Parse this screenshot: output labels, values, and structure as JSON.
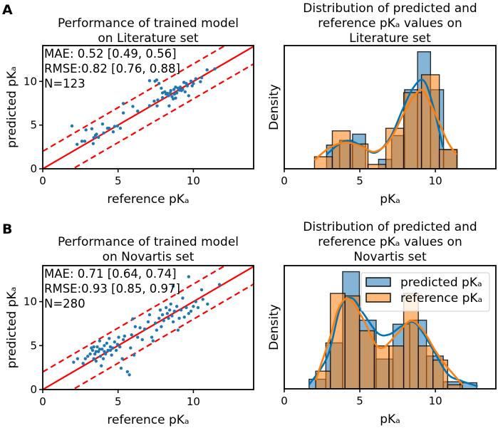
{
  "colors": {
    "blue": "#1f77b4",
    "kde_blue": "#0173b2",
    "orange": "#ff7f0e",
    "line_red": "#ff0000"
  },
  "chart_data": [
    {
      "panel": "A",
      "type": "scatter",
      "title": [
        "Performance of trained model",
        "on Literature set"
      ],
      "xlabel": "reference pKₐ",
      "ylabel": "predicted pKₐ",
      "xlim": [
        0,
        14
      ],
      "ylim": [
        0,
        14.1
      ],
      "xticks": [
        0,
        5,
        10
      ],
      "yticks": [
        0,
        5,
        10
      ],
      "stats": [
        "MAE:  0.52 [0.49, 0.56]",
        "RMSE:0.82 [0.76, 0.88]",
        "N=123"
      ],
      "reference_lines": [
        {
          "offset": 0,
          "style": "solid"
        },
        {
          "offset": 2,
          "style": "dashed"
        },
        {
          "offset": -2,
          "style": "dashed"
        }
      ],
      "points": [
        [
          1.94,
          4.9
        ],
        [
          2.28,
          2.8
        ],
        [
          2.6,
          3.15
        ],
        [
          2.79,
          3.15
        ],
        [
          2.87,
          4.45
        ],
        [
          3.26,
          4.58
        ],
        [
          3.35,
          2.88
        ],
        [
          3.39,
          3.56
        ],
        [
          3.5,
          3.83
        ],
        [
          3.57,
          3.96
        ],
        [
          3.7,
          3.6
        ],
        [
          3.97,
          5.12
        ],
        [
          4.05,
          4.1
        ],
        [
          4.3,
          4.64
        ],
        [
          4.41,
          4.64
        ],
        [
          4.68,
          4.23
        ],
        [
          4.77,
          4.85
        ],
        [
          4.96,
          4.9
        ],
        [
          5.15,
          4.64
        ],
        [
          5.35,
          6.39
        ],
        [
          5.35,
          7.47
        ],
        [
          5.98,
          7.14
        ],
        [
          6.3,
          6.6
        ],
        [
          7.09,
          10.08
        ],
        [
          7.09,
          7.22
        ],
        [
          7.4,
          7.74
        ],
        [
          7.45,
          10.03
        ],
        [
          7.56,
          10.16
        ],
        [
          7.59,
          7.2
        ],
        [
          7.72,
          9.76
        ],
        [
          7.87,
          9.22
        ],
        [
          7.95,
          8.14
        ],
        [
          8.1,
          8.81
        ],
        [
          8.27,
          8.63
        ],
        [
          8.35,
          8.36
        ],
        [
          8.39,
          7.2
        ],
        [
          8.46,
          8.68
        ],
        [
          8.58,
          8.27
        ],
        [
          8.71,
          9.08
        ],
        [
          8.82,
          8.09
        ],
        [
          8.9,
          8.68
        ],
        [
          9.06,
          9.0
        ],
        [
          9.21,
          8.95
        ],
        [
          9.37,
          9.89
        ],
        [
          9.45,
          8.81
        ],
        [
          9.6,
          9.49
        ],
        [
          9.69,
          8.36
        ],
        [
          9.84,
          10.03
        ],
        [
          10.0,
          9.76
        ],
        [
          10.16,
          10.3
        ],
        [
          10.47,
          9.97
        ],
        [
          10.55,
          10.43
        ],
        [
          10.91,
          11.32
        ],
        [
          11.42,
          11.43
        ],
        [
          8.19,
          8.54
        ],
        [
          8.5,
          8.95
        ],
        [
          8.74,
          8.54
        ],
        [
          8.98,
          9.22
        ],
        [
          9.29,
          9.08
        ],
        [
          9.53,
          9.76
        ],
        [
          9.92,
          9.49
        ],
        [
          8.82,
          9.35
        ],
        [
          8.66,
          8.0
        ],
        [
          9.13,
          9.35
        ],
        [
          7.95,
          8.68
        ],
        [
          7.64,
          7.87
        ]
      ]
    },
    {
      "panel": "A",
      "type": "histogram",
      "title": [
        "Distribution of predicted and",
        "reference pKₐ values on",
        "Literature set"
      ],
      "xlabel": "pKₐ",
      "ylabel": "Density",
      "xlim": [
        0,
        14
      ],
      "ylim": [
        0,
        0.338
      ],
      "xticks": [
        0,
        5,
        10
      ],
      "legend": null,
      "series": [
        {
          "name": "predicted pKₐ",
          "color": "blue",
          "bin_start": 2.8,
          "bin_width": 0.86,
          "density": [
            0.065,
            0.078,
            0.095,
            0.0,
            0.026,
            0.091,
            0.217,
            0.321,
            0.217,
            0.052
          ],
          "kde": [
            [
              2.8,
              0.039
            ],
            [
              3.5,
              0.064
            ],
            [
              4.2,
              0.077
            ],
            [
              5.0,
              0.066
            ],
            [
              6.0,
              0.044
            ],
            [
              7.0,
              0.085
            ],
            [
              7.8,
              0.16
            ],
            [
              8.5,
              0.22
            ],
            [
              9.2,
              0.243
            ],
            [
              9.8,
              0.18
            ],
            [
              10.5,
              0.059
            ]
          ]
        },
        {
          "name": "reference pKₐ",
          "color": "orange",
          "bin_start": 2.0,
          "bin_width": 1.18,
          "density": [
            0.033,
            0.104,
            0.068,
            0.012,
            0.111,
            0.209,
            0.258,
            0.053
          ],
          "kde": [
            [
              2.0,
              0.024
            ],
            [
              3.0,
              0.058
            ],
            [
              4.0,
              0.072
            ],
            [
              5.0,
              0.063
            ],
            [
              6.0,
              0.047
            ],
            [
              7.0,
              0.08
            ],
            [
              8.0,
              0.16
            ],
            [
              8.7,
              0.205
            ],
            [
              9.2,
              0.213
            ],
            [
              10.0,
              0.15
            ],
            [
              10.8,
              0.075
            ],
            [
              11.4,
              0.039
            ]
          ]
        }
      ]
    },
    {
      "panel": "B",
      "type": "scatter",
      "title": [
        "Performance of trained model",
        "on Novartis set"
      ],
      "xlabel": "reference pKₐ",
      "ylabel": "predicted pKₐ",
      "xlim": [
        0,
        14
      ],
      "ylim": [
        0,
        14.1
      ],
      "xticks": [
        0,
        5,
        10
      ],
      "yticks": [
        0,
        5,
        10
      ],
      "stats": [
        "MAE:  0.71 [0.64, 0.74]",
        "RMSE:0.93 [0.85, 0.97]",
        "N=280"
      ],
      "reference_lines": [
        {
          "offset": 0,
          "style": "solid"
        },
        {
          "offset": 2,
          "style": "dashed"
        },
        {
          "offset": -2,
          "style": "dashed"
        }
      ],
      "points": [
        [
          2.05,
          3.11
        ],
        [
          2.31,
          3.51
        ],
        [
          2.68,
          2.97
        ],
        [
          2.83,
          3.51
        ],
        [
          2.99,
          3.78
        ],
        [
          3.15,
          4.05
        ],
        [
          3.23,
          4.73
        ],
        [
          3.31,
          4.46
        ],
        [
          3.39,
          3.51
        ],
        [
          3.46,
          4.05
        ],
        [
          3.54,
          3.24
        ],
        [
          3.62,
          4.86
        ],
        [
          3.7,
          4.32
        ],
        [
          3.78,
          5.54
        ],
        [
          3.83,
          3.78
        ],
        [
          3.89,
          2.7
        ],
        [
          3.94,
          4.59
        ],
        [
          4.02,
          3.51
        ],
        [
          4.09,
          5.0
        ],
        [
          4.17,
          4.05
        ],
        [
          4.25,
          5.27
        ],
        [
          4.33,
          4.46
        ],
        [
          4.41,
          5.81
        ],
        [
          4.49,
          4.86
        ],
        [
          4.57,
          3.92
        ],
        [
          4.65,
          4.73
        ],
        [
          4.77,
          5.41
        ],
        [
          4.88,
          4.46
        ],
        [
          4.96,
          5.14
        ],
        [
          5.04,
          5.95
        ],
        [
          5.12,
          4.86
        ],
        [
          5.2,
          2.43
        ],
        [
          5.28,
          3.51
        ],
        [
          5.35,
          5.68
        ],
        [
          5.43,
          6.08
        ],
        [
          5.62,
          2.03
        ],
        [
          5.75,
          1.68
        ],
        [
          5.83,
          4.73
        ],
        [
          5.9,
          6.22
        ],
        [
          5.98,
          8.05
        ],
        [
          6.06,
          3.92
        ],
        [
          6.14,
          7.16
        ],
        [
          6.3,
          5.95
        ],
        [
          6.46,
          7.03
        ],
        [
          6.61,
          5.68
        ],
        [
          6.77,
          6.89
        ],
        [
          7.0,
          7.7
        ],
        [
          7.09,
          8.51
        ],
        [
          7.24,
          5.95
        ],
        [
          7.32,
          5.54
        ],
        [
          7.48,
          7.57
        ],
        [
          7.56,
          6.76
        ],
        [
          7.72,
          8.11
        ],
        [
          7.8,
          9.05
        ],
        [
          7.87,
          7.16
        ],
        [
          7.95,
          8.51
        ],
        [
          8.03,
          7.84
        ],
        [
          8.19,
          9.32
        ],
        [
          8.27,
          8.65
        ],
        [
          8.35,
          8.11
        ],
        [
          8.43,
          9.05
        ],
        [
          8.5,
          9.73
        ],
        [
          8.58,
          8.38
        ],
        [
          8.66,
          7.7
        ],
        [
          8.74,
          8.92
        ],
        [
          8.9,
          9.46
        ],
        [
          8.98,
          6.76
        ],
        [
          9.06,
          8.11
        ],
        [
          9.18,
          9.05
        ],
        [
          9.29,
          10.41
        ],
        [
          9.4,
          8.24
        ],
        [
          9.53,
          9.32
        ],
        [
          9.69,
          8.65
        ],
        [
          9.84,
          8.92
        ],
        [
          10.0,
          9.46
        ],
        [
          10.16,
          10.0
        ],
        [
          10.31,
          9.32
        ],
        [
          10.55,
          11.35
        ],
        [
          10.63,
          10.27
        ],
        [
          10.94,
          9.73
        ],
        [
          11.73,
          11.95
        ],
        [
          8.66,
          11.76
        ],
        [
          9.69,
          12.84
        ],
        [
          3.54,
          4.32
        ],
        [
          3.78,
          4.59
        ],
        [
          4.09,
          4.32
        ],
        [
          3.39,
          4.86
        ],
        [
          4.49,
          4.46
        ]
      ]
    },
    {
      "panel": "B",
      "type": "histogram",
      "title": [
        "Distribution of predicted and",
        "reference pKₐ values on",
        "Novartis set"
      ],
      "xlabel": "pKₐ",
      "ylabel": "Density",
      "xlim": [
        0,
        14
      ],
      "ylim": [
        0,
        0.244
      ],
      "xticks": [
        0,
        5,
        10
      ],
      "legend": "top-right",
      "series": [
        {
          "name": "predicted pKₐ",
          "color": "blue",
          "bin_start": 1.64,
          "bin_width": 1.11,
          "density": [
            0.019,
            0.091,
            0.232,
            0.136,
            0.059,
            0.128,
            0.136,
            0.065,
            0.014,
            0.012
          ],
          "kde": [
            [
              1.64,
              0.008
            ],
            [
              2.87,
              0.065
            ],
            [
              3.7,
              0.16
            ],
            [
              4.45,
              0.18
            ],
            [
              5.24,
              0.149
            ],
            [
              6.2,
              0.11
            ],
            [
              6.97,
              0.108
            ],
            [
              7.8,
              0.125
            ],
            [
              8.55,
              0.132
            ],
            [
              9.2,
              0.11
            ],
            [
              9.8,
              0.08
            ],
            [
              10.8,
              0.03
            ],
            [
              11.7,
              0.016
            ],
            [
              12.8,
              0.005
            ]
          ]
        },
        {
          "name": "reference pKₐ",
          "color": "orange",
          "bin_start": 2.08,
          "bin_width": 0.97,
          "density": [
            0.035,
            0.189,
            0.184,
            0.115,
            0.085,
            0.085,
            0.189,
            0.085,
            0.057,
            0.008
          ],
          "kde": [
            [
              2.08,
              0.017
            ],
            [
              3.03,
              0.102
            ],
            [
              3.6,
              0.16
            ],
            [
              4.29,
              0.178
            ],
            [
              5.24,
              0.137
            ],
            [
              6.0,
              0.09
            ],
            [
              6.58,
              0.082
            ],
            [
              7.5,
              0.11
            ],
            [
              8.39,
              0.135
            ],
            [
              9.2,
              0.115
            ],
            [
              10.0,
              0.075
            ],
            [
              10.76,
              0.044
            ],
            [
              11.8,
              0.008
            ]
          ]
        }
      ]
    }
  ],
  "panel_labels": [
    "A",
    "B"
  ]
}
